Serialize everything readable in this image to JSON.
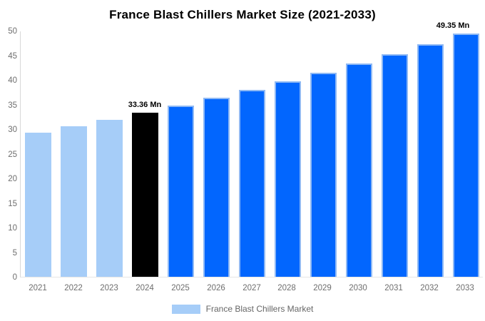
{
  "chart_data": {
    "type": "bar",
    "title": "France Blast Chillers Market Size (2021-2033)",
    "categories": [
      "2021",
      "2022",
      "2023",
      "2024",
      "2025",
      "2026",
      "2027",
      "2028",
      "2029",
      "2030",
      "2031",
      "2032",
      "2033"
    ],
    "values": [
      29.27,
      30.57,
      31.94,
      33.36,
      34.84,
      36.4,
      38.02,
      39.71,
      41.49,
      43.33,
      45.26,
      47.25,
      49.35
    ],
    "unit": "Mn",
    "xlabel": "",
    "ylabel": "",
    "ylim": [
      0,
      50
    ],
    "ytick_step": 5,
    "grid": false,
    "legend": {
      "position": "bottom",
      "label": "France Blast Chillers Market",
      "swatch_color": "#a6cdf8"
    },
    "bar_colors": [
      "#a6cdf8",
      "#a6cdf8",
      "#a6cdf8",
      "#000000",
      "#0266fe",
      "#0266fe",
      "#0266fe",
      "#0266fe",
      "#0266fe",
      "#0266fe",
      "#0266fe",
      "#0266fe",
      "#0266fe"
    ],
    "bar_border_colors": [
      null,
      null,
      null,
      null,
      "#8fb9f4",
      "#8fb9f4",
      "#8fb9f4",
      "#8fb9f4",
      "#8fb9f4",
      "#8fb9f4",
      "#8fb9f4",
      "#8fb9f4",
      "#8fb9f4"
    ],
    "annotations": [
      {
        "category": "2024",
        "text": "33.36 Mn"
      },
      {
        "category": "2033",
        "text": "49.35 Mn"
      }
    ],
    "colors": {
      "axis_text": "#6e6e6e",
      "axis_line": "#d8d8d8",
      "title_text": "#000000",
      "annotation_text": "#000000"
    }
  }
}
